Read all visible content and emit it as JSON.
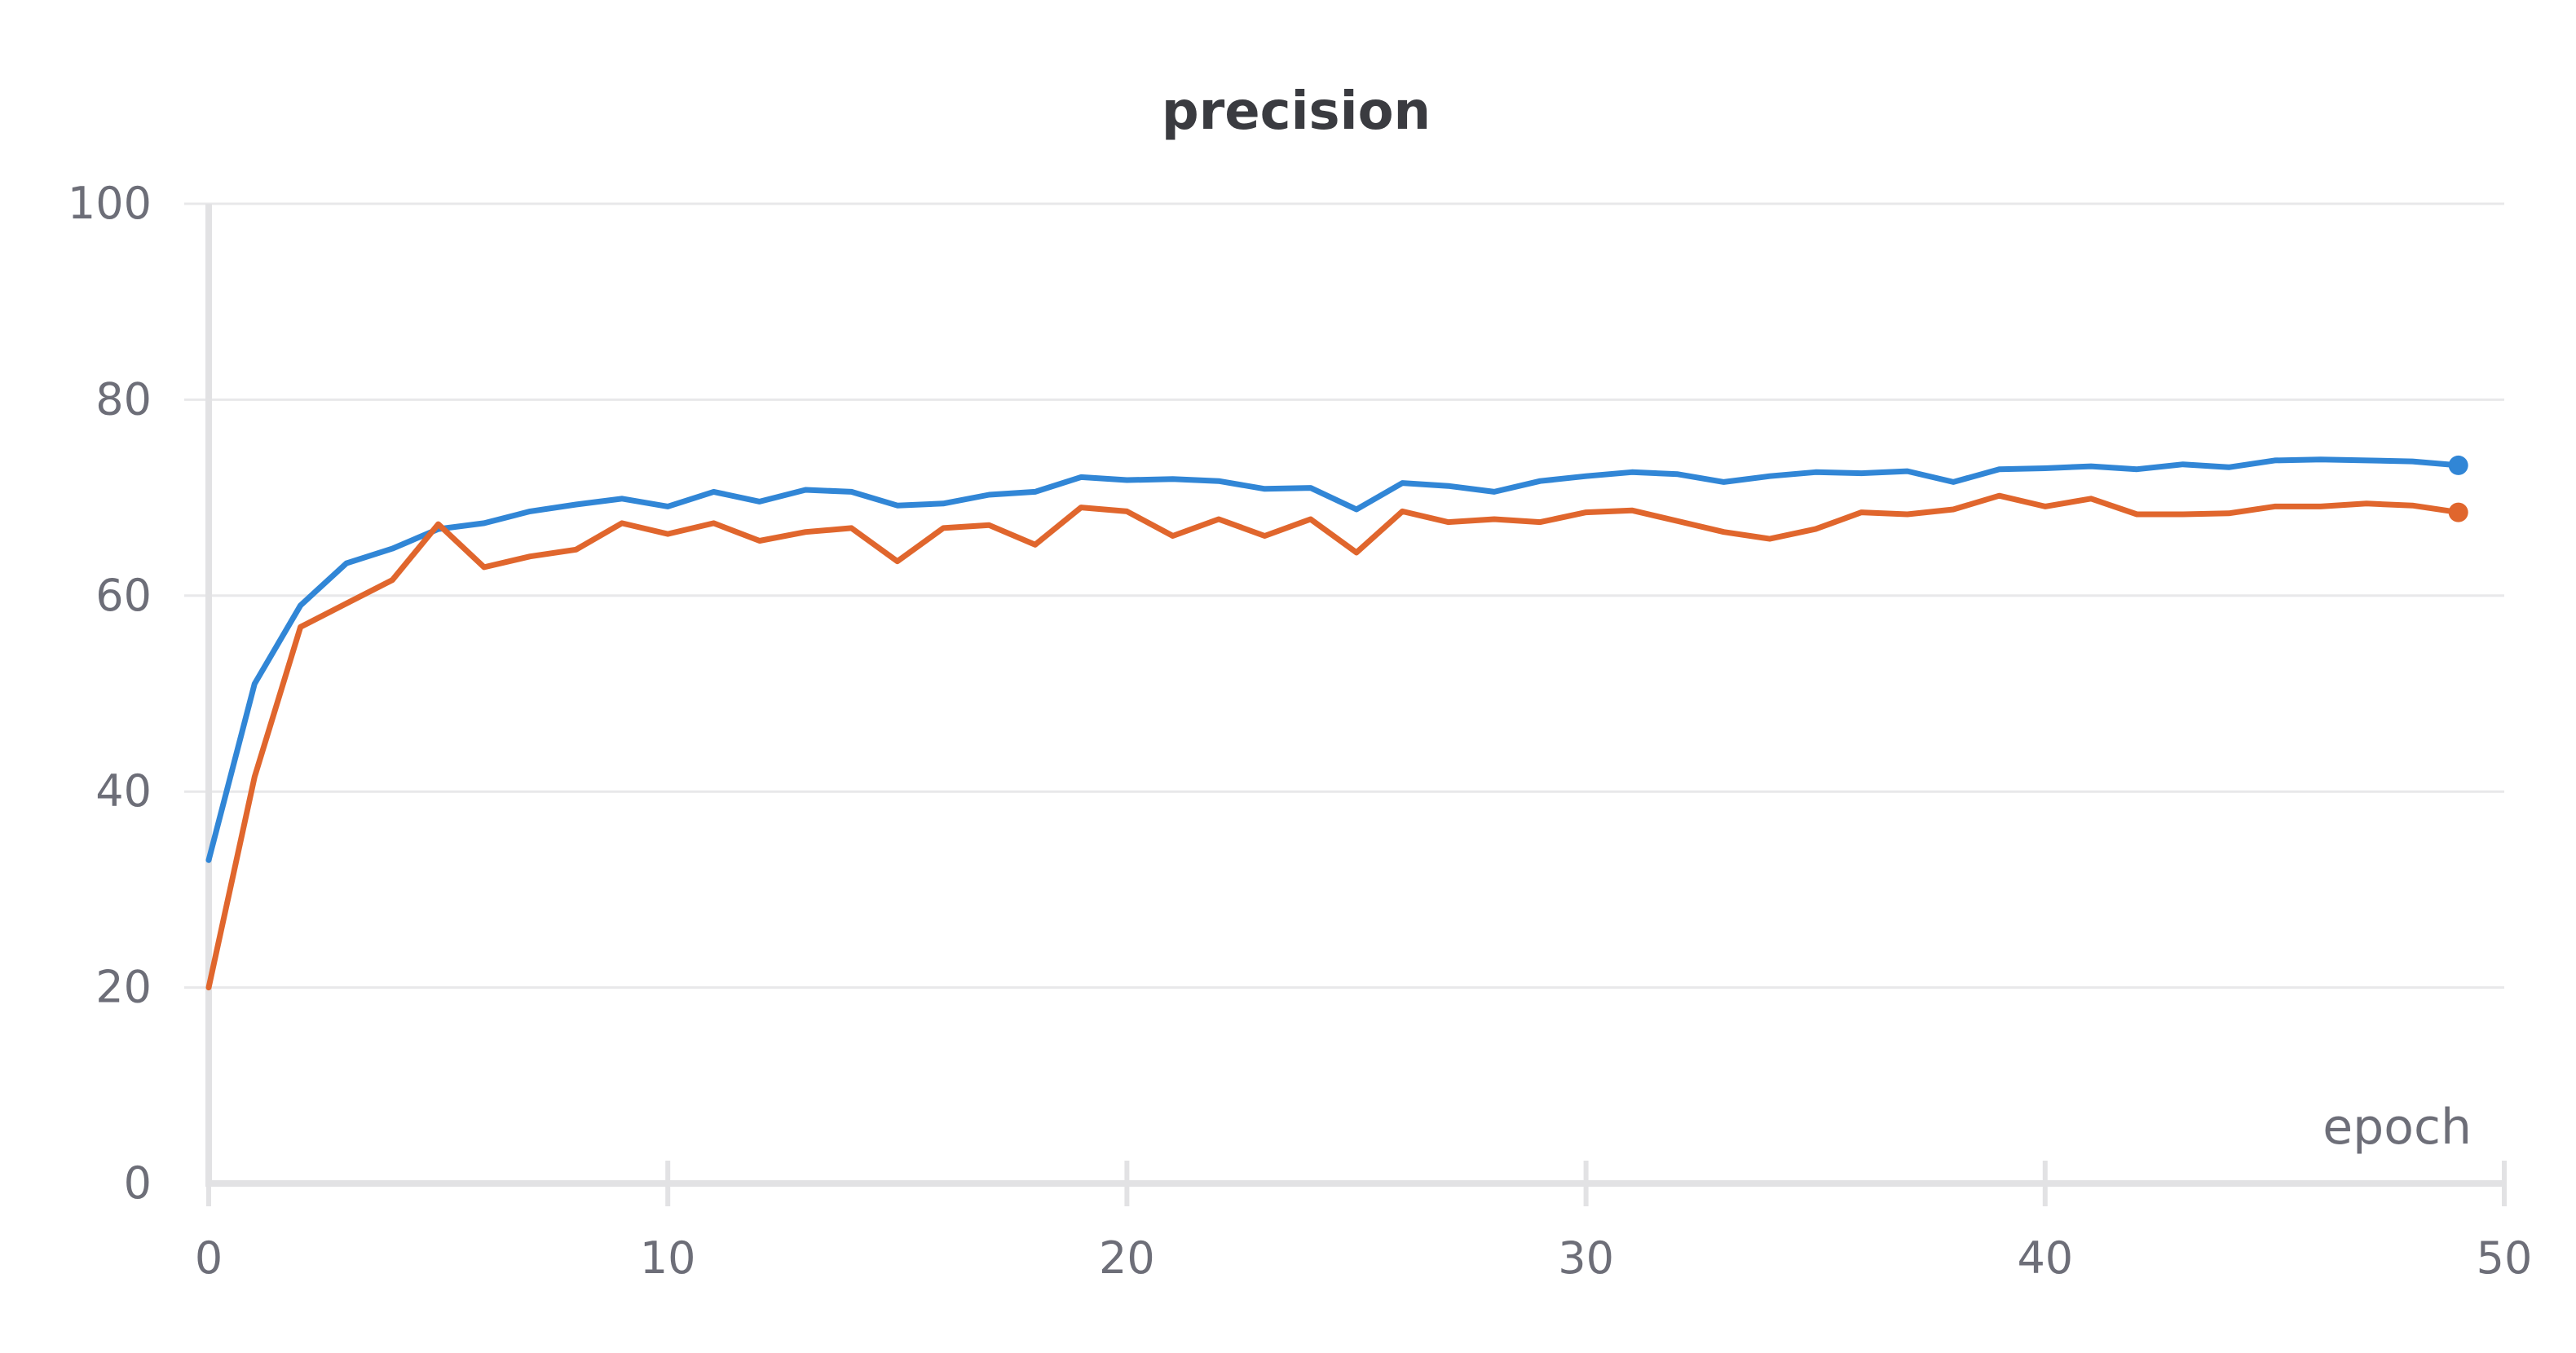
{
  "chart_data": {
    "type": "line",
    "title": "precision",
    "xlabel": "epoch",
    "ylabel": "",
    "xlim": [
      0,
      50
    ],
    "ylim": [
      0,
      100
    ],
    "xticks": [
      0,
      10,
      20,
      30,
      40,
      50
    ],
    "yticks": [
      0,
      20,
      40,
      60,
      80,
      100
    ],
    "grid": true,
    "legend": "none",
    "x": [
      0,
      1,
      2,
      3,
      4,
      5,
      6,
      7,
      8,
      9,
      10,
      11,
      12,
      13,
      14,
      15,
      16,
      17,
      18,
      19,
      20,
      21,
      22,
      23,
      24,
      25,
      26,
      27,
      28,
      29,
      30,
      31,
      32,
      33,
      34,
      35,
      36,
      37,
      38,
      39,
      40,
      41,
      42,
      43,
      44,
      45,
      46,
      47,
      48,
      49
    ],
    "series": [
      {
        "color": "#3186d6",
        "values": [
          33,
          51,
          59,
          63.3,
          64.8,
          66.8,
          67.4,
          68.6,
          69.3,
          69.9,
          69.1,
          70.6,
          69.6,
          70.8,
          70.6,
          69.2,
          69.4,
          70.3,
          70.6,
          72.1,
          71.8,
          71.9,
          71.7,
          70.9,
          71,
          68.8,
          71.5,
          71.2,
          70.6,
          71.7,
          72.2,
          72.6,
          72.4,
          71.6,
          72.2,
          72.6,
          72.5,
          72.7,
          71.6,
          72.9,
          73,
          73.2,
          72.9,
          73.4,
          73.1,
          73.8,
          73.9,
          73.8,
          73.7,
          73.3
        ]
      },
      {
        "color": "#e0662d",
        "values": [
          20,
          41.5,
          56.8,
          59.2,
          61.6,
          67.3,
          62.9,
          64,
          64.7,
          67.4,
          66.3,
          67.4,
          65.6,
          66.5,
          66.9,
          63.5,
          66.9,
          67.2,
          65.2,
          69,
          68.6,
          66.1,
          67.8,
          66.1,
          67.8,
          64.4,
          68.6,
          67.5,
          67.8,
          67.5,
          68.5,
          68.7,
          67.6,
          66.5,
          65.8,
          66.8,
          68.5,
          68.3,
          68.8,
          70.2,
          69.1,
          69.9,
          68.3,
          68.3,
          68.4,
          69.1,
          69.1,
          69.4,
          69.2,
          68.5
        ]
      }
    ]
  }
}
